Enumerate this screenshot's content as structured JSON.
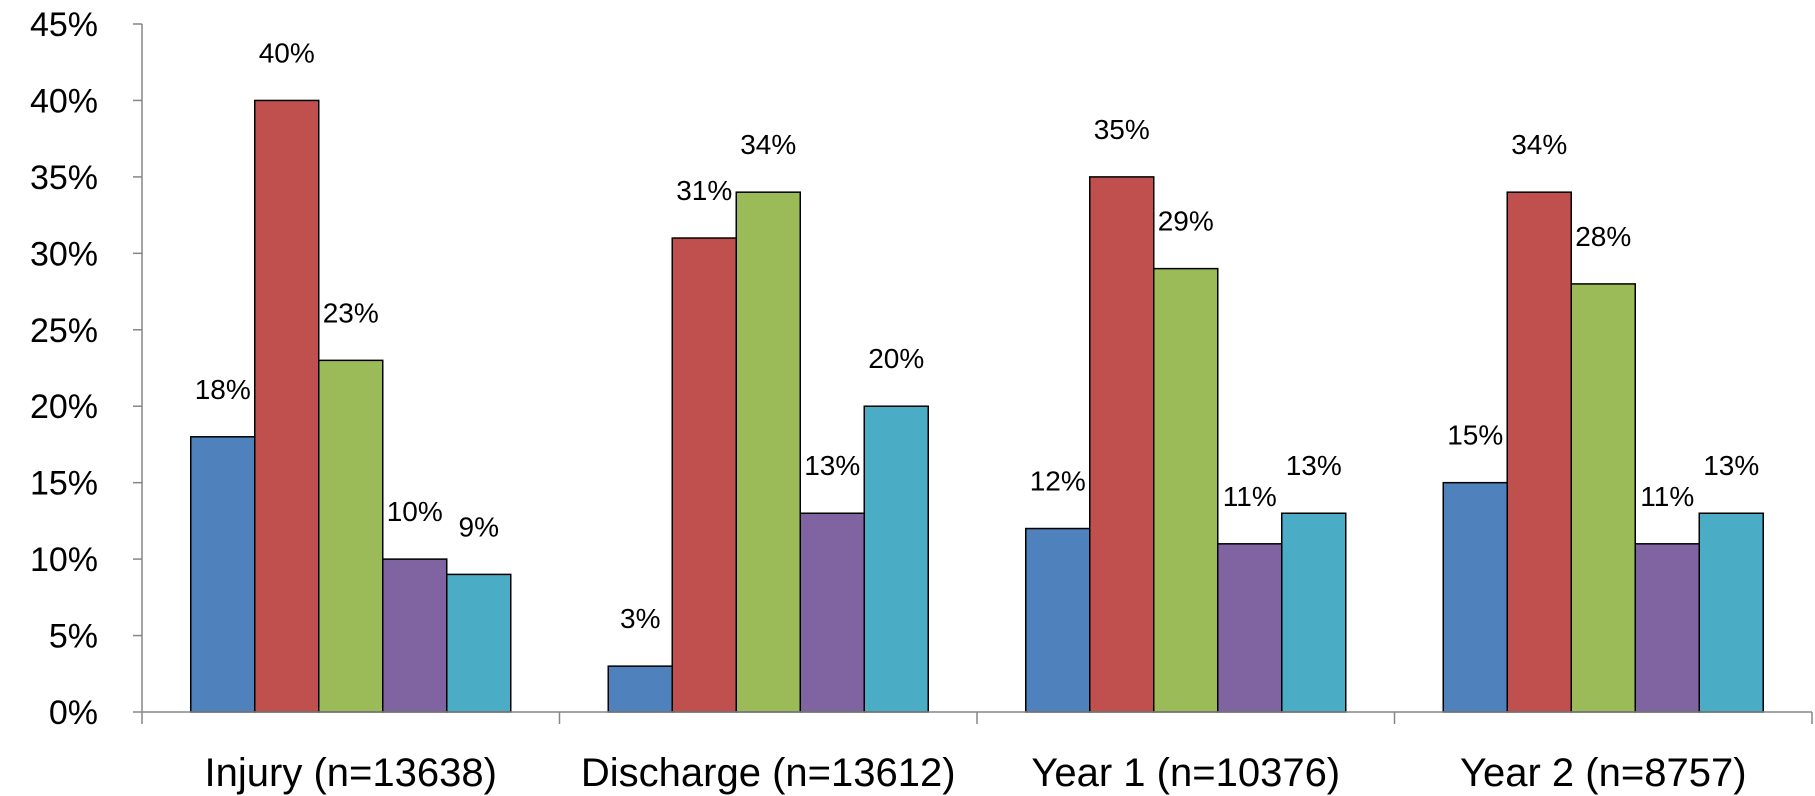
{
  "chart_data": {
    "type": "bar",
    "categories": [
      "Injury (n=13638)",
      "Discharge (n=13612)",
      "Year 1 (n=10376)",
      "Year 2 (n=8757)"
    ],
    "series": [
      {
        "values": [
          18,
          3,
          12,
          15
        ],
        "color": "#4F81BD"
      },
      {
        "values": [
          40,
          31,
          35,
          34
        ],
        "color": "#C0504D"
      },
      {
        "values": [
          23,
          34,
          29,
          28
        ],
        "color": "#9BBB59"
      },
      {
        "values": [
          10,
          13,
          11,
          11
        ],
        "color": "#8064A2"
      },
      {
        "values": [
          9,
          20,
          13,
          13
        ],
        "color": "#4BACC6"
      }
    ],
    "data_labels": [
      [
        "18%",
        "3%",
        "12%",
        "15%"
      ],
      [
        "40%",
        "31%",
        "35%",
        "34%"
      ],
      [
        "23%",
        "34%",
        "29%",
        "28%"
      ],
      [
        "10%",
        "13%",
        "11%",
        "11%"
      ],
      [
        "9%",
        "20%",
        "13%",
        "13%"
      ]
    ],
    "yticks": [
      "0%",
      "5%",
      "10%",
      "15%",
      "20%",
      "25%",
      "30%",
      "35%",
      "40%",
      "45%"
    ],
    "ylim": [
      0,
      45
    ],
    "ystep": 5,
    "grid": false,
    "legend": "none",
    "title": "",
    "xlabel": "",
    "ylabel": ""
  }
}
